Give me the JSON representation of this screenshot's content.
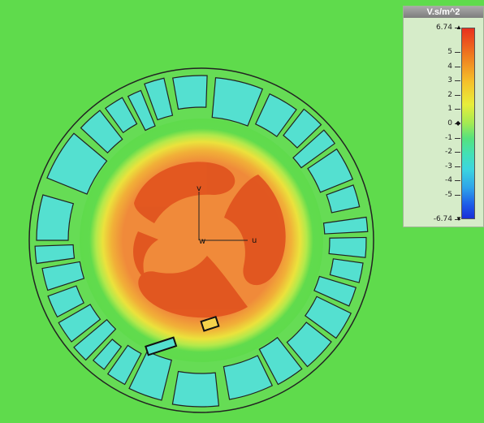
{
  "plot": {
    "background_color": "#5fdb4c",
    "core_color": "#f08a3a",
    "hot_color": "#e1551f",
    "part_color": "#54e0d0",
    "part_outline": "#222222",
    "axes": {
      "u_label": "u",
      "v_label": "v",
      "w_label": "w"
    }
  },
  "colorbar": {
    "title": "V.s/m^2",
    "max_label": "6.74",
    "min_label": "-6.74",
    "ticks": [
      {
        "label": "6.74",
        "value": 6.74,
        "marker": "up-arrow"
      },
      {
        "label": "5",
        "value": 5
      },
      {
        "label": "4",
        "value": 4
      },
      {
        "label": "3",
        "value": 3
      },
      {
        "label": "2",
        "value": 2
      },
      {
        "label": "1",
        "value": 1
      },
      {
        "label": "0",
        "value": 0,
        "marker": "diamond"
      },
      {
        "label": "-1",
        "value": -1
      },
      {
        "label": "-2",
        "value": -2
      },
      {
        "label": "-3",
        "value": -3
      },
      {
        "label": "-4",
        "value": -4
      },
      {
        "label": "-5",
        "value": -5
      },
      {
        "label": "-6.74",
        "value": -6.74,
        "marker": "down-arrow"
      }
    ],
    "colors": {
      "max": "#e8301e",
      "zero": "#a2ea53",
      "min": "#1a2fd8"
    }
  }
}
